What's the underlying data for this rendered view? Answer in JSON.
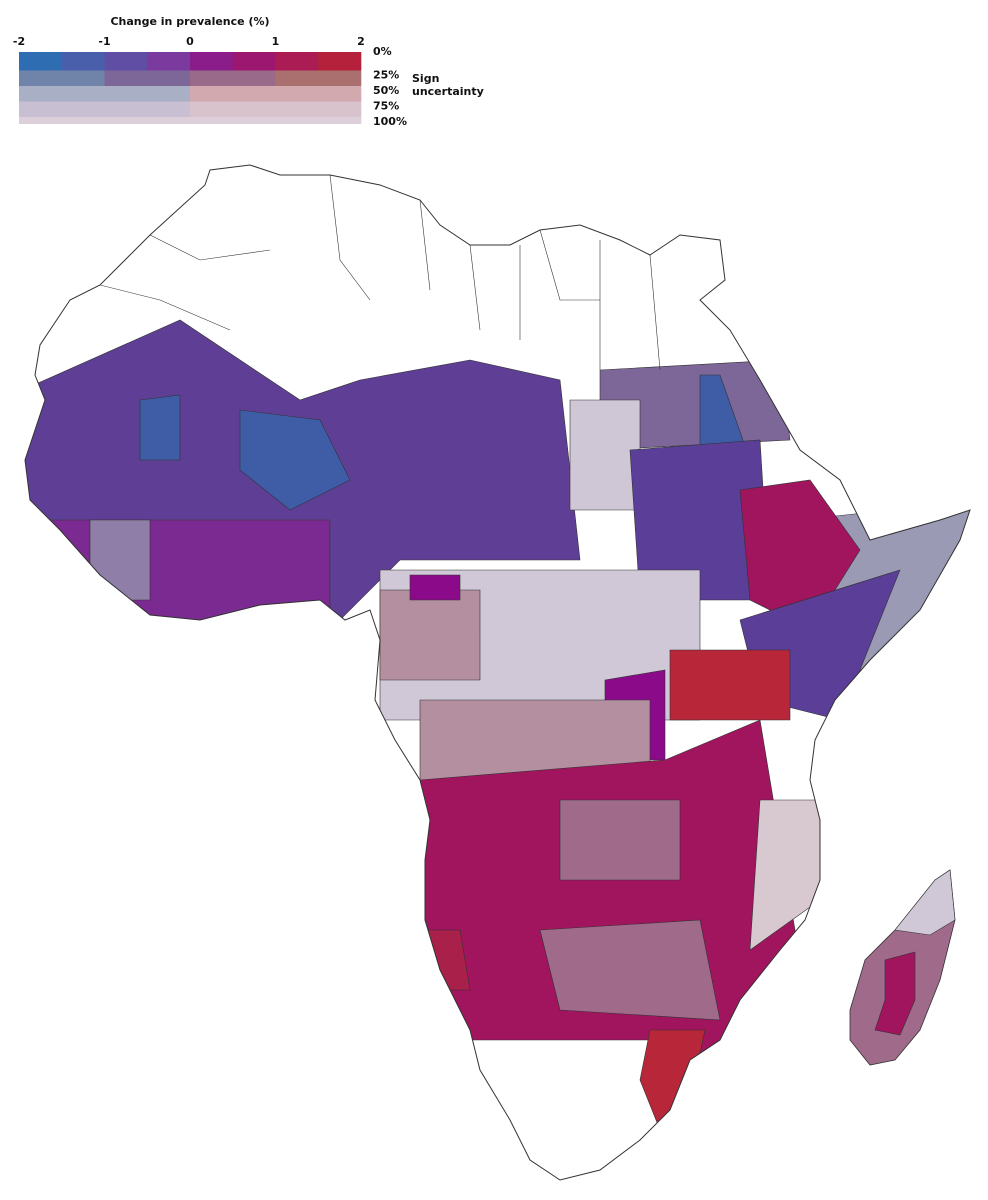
{
  "legend": {
    "title": "Change in prevalence (%)",
    "xlim": [
      -2,
      2
    ],
    "xticks": [
      -2,
      -1,
      0,
      1,
      2
    ],
    "uncertainty_title": "Sign uncertainty",
    "uncertainty_levels": [
      {
        "value": 0,
        "label": "0%"
      },
      {
        "value": 25,
        "label": "25%"
      },
      {
        "value": 50,
        "label": "50%"
      },
      {
        "value": 75,
        "label": "75%"
      },
      {
        "value": 100,
        "label": "100%"
      }
    ],
    "colors": [
      [
        "#2f6db3",
        "#4a5fab",
        "#5f4ea3",
        "#7a3a9e",
        "#8a1d8a",
        "#9c1770",
        "#ab1c55",
        "#b5213a"
      ],
      [
        "#6f84a8",
        "#7d6799",
        "#9a6a8a",
        "#a9706f"
      ],
      [
        "#a9b0c6",
        "#d3a9b0"
      ],
      [
        "#c8c0d2",
        "#d8c3cc"
      ],
      [
        "#dccfd9"
      ]
    ]
  }
}
